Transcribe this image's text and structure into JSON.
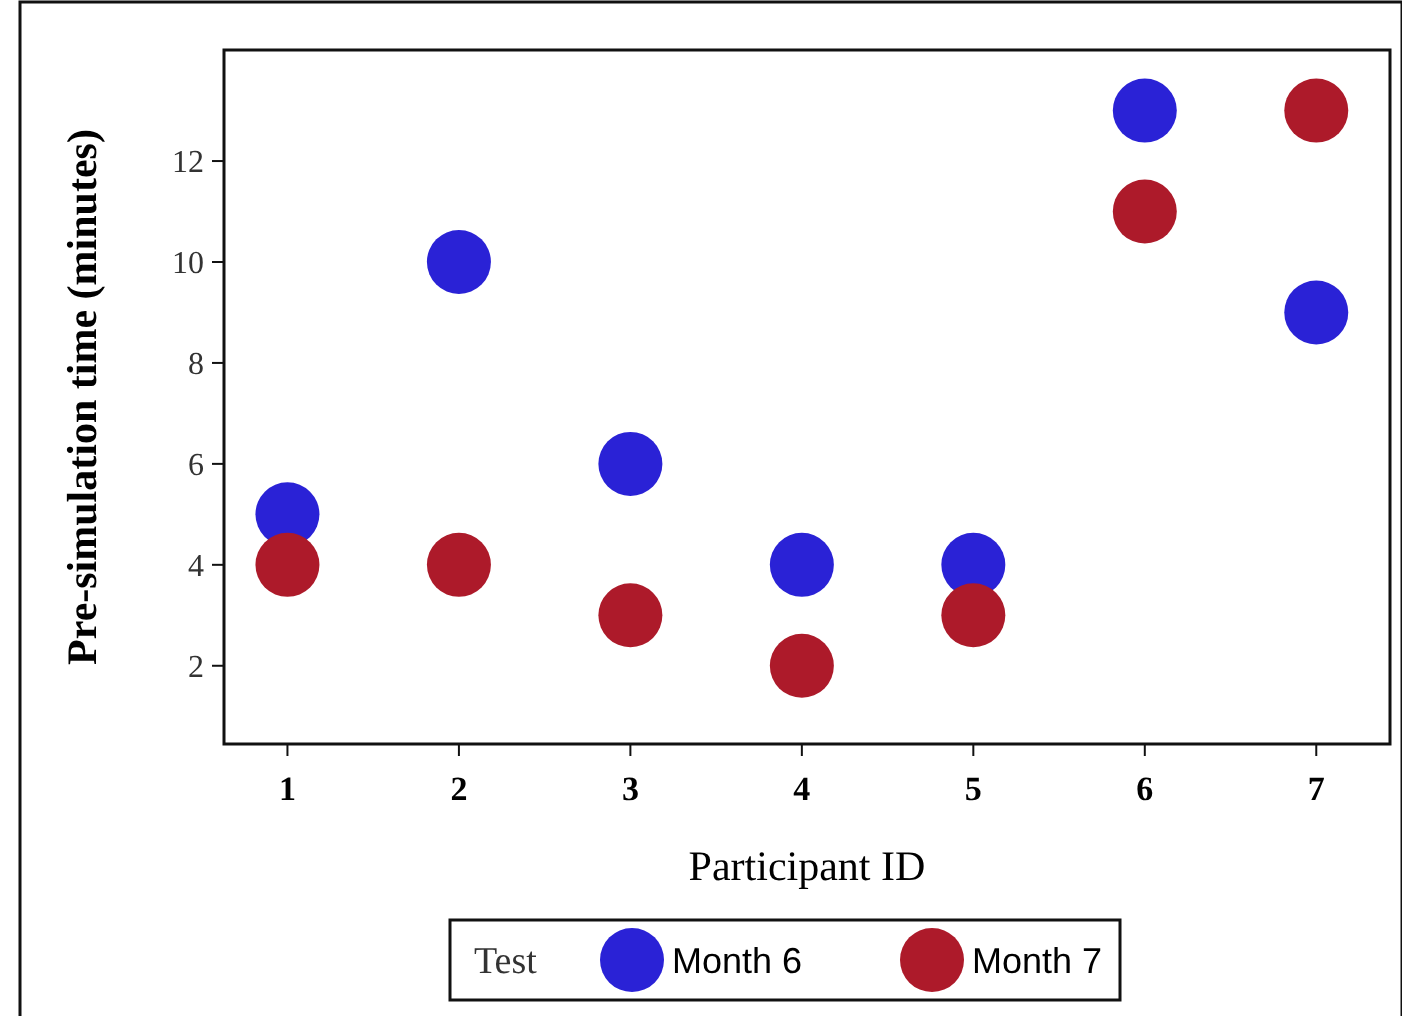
{
  "chart_data": {
    "type": "scatter",
    "xlabel": "Participant ID",
    "ylabel": "Pre-simulation time (minutes)",
    "legend_title": "Test",
    "legend": "bottom",
    "marker": "circle",
    "x": [
      1,
      2,
      3,
      4,
      5,
      6,
      7
    ],
    "xlim": [
      0.63,
      7.43
    ],
    "xticks": [
      1,
      2,
      3,
      4,
      5,
      6,
      7
    ],
    "ylim": [
      0.45,
      14.2
    ],
    "yticks": [
      2,
      4,
      6,
      8,
      10,
      12
    ],
    "series": [
      {
        "name": "Month 6",
        "color": "#2a22d6",
        "values": [
          5,
          10,
          6,
          4,
          4,
          13,
          9
        ]
      },
      {
        "name": "Month 7",
        "color": "#ad1a2a",
        "values": [
          4,
          4,
          3,
          2,
          3,
          11,
          13
        ]
      }
    ]
  }
}
